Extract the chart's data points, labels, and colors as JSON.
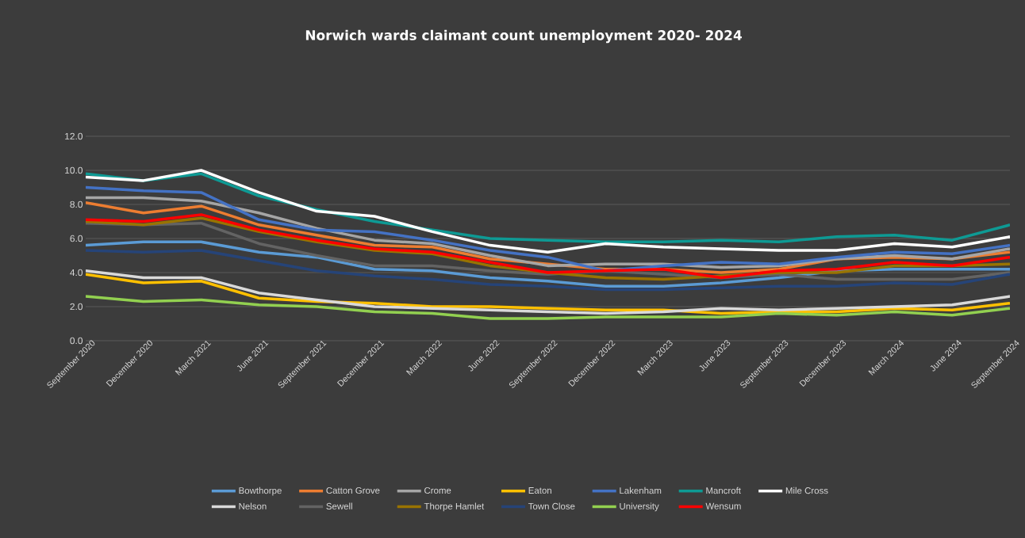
{
  "chart_data": {
    "type": "line",
    "title": "Norwich wards claimant count unemployment 2020- 2024",
    "categories": [
      "September 2020",
      "December 2020",
      "March 2021",
      "June 2021",
      "September 2021",
      "December 2021",
      "March 2022",
      "June 2022",
      "September 2022",
      "December 2022",
      "March 2023",
      "June 2023",
      "September 2023",
      "December 2023",
      "March 2024",
      "June 2024",
      "September 2024"
    ],
    "ylim": [
      0,
      12
    ],
    "yticks": [
      {
        "value": 0,
        "label": "0.0"
      },
      {
        "value": 2,
        "label": "2.0"
      },
      {
        "value": 4,
        "label": "4.0"
      },
      {
        "value": 6,
        "label": "6.0"
      },
      {
        "value": 8,
        "label": "8.0"
      },
      {
        "value": 10,
        "label": "10.0"
      },
      {
        "value": 12,
        "label": "12.0"
      }
    ],
    "grid": "y",
    "legend": "bottom",
    "marker": "none",
    "line_style": "solid",
    "series": [
      {
        "name": "Bowthorpe",
        "color": "#5b9bd5",
        "values": [
          5.6,
          5.8,
          5.8,
          5.2,
          4.9,
          4.2,
          4.1,
          3.7,
          3.5,
          3.2,
          3.2,
          3.4,
          3.7,
          4.1,
          4.2,
          4.2,
          4.2
        ]
      },
      {
        "name": "Catton Grove",
        "color": "#ed7d31",
        "values": [
          8.1,
          7.5,
          7.9,
          6.8,
          6.2,
          5.6,
          5.5,
          4.8,
          4.5,
          4.2,
          4.2,
          4.0,
          4.2,
          4.8,
          4.9,
          4.8,
          5.2
        ]
      },
      {
        "name": "Crome",
        "color": "#a5a5a5",
        "values": [
          8.4,
          8.4,
          8.2,
          7.5,
          6.6,
          5.9,
          5.7,
          5.0,
          4.4,
          4.5,
          4.5,
          4.3,
          4.4,
          4.8,
          5.0,
          4.8,
          5.4
        ]
      },
      {
        "name": "Eaton",
        "color": "#ffc000",
        "values": [
          3.9,
          3.4,
          3.5,
          2.5,
          2.3,
          2.2,
          2.0,
          2.0,
          1.9,
          1.8,
          1.8,
          1.6,
          1.7,
          1.7,
          1.9,
          1.8,
          2.2
        ]
      },
      {
        "name": "Lakenham",
        "color": "#4472c4",
        "values": [
          9.0,
          8.8,
          8.7,
          7.1,
          6.5,
          6.4,
          5.9,
          5.3,
          4.9,
          4.1,
          4.4,
          4.6,
          4.5,
          4.9,
          5.2,
          5.1,
          5.6
        ]
      },
      {
        "name": "Mancroft",
        "color": "#0e9a94",
        "values": [
          9.8,
          9.4,
          9.8,
          8.5,
          7.7,
          7.0,
          6.5,
          6.0,
          5.9,
          5.8,
          5.8,
          5.9,
          5.8,
          6.1,
          6.2,
          5.9,
          6.8
        ]
      },
      {
        "name": "Mile Cross",
        "color": "#ffffff",
        "values": [
          9.6,
          9.4,
          10.0,
          8.7,
          7.6,
          7.3,
          6.4,
          5.6,
          5.2,
          5.7,
          5.5,
          5.4,
          5.3,
          5.3,
          5.7,
          5.5,
          6.1
        ]
      },
      {
        "name": "Nelson",
        "color": "#d9d9d9",
        "values": [
          4.1,
          3.7,
          3.7,
          2.8,
          2.4,
          2.0,
          1.9,
          1.8,
          1.7,
          1.6,
          1.7,
          1.9,
          1.8,
          1.9,
          2.0,
          2.1,
          2.6
        ]
      },
      {
        "name": "Sewell",
        "color": "#636363",
        "values": [
          6.9,
          6.8,
          6.9,
          5.7,
          5.0,
          4.4,
          4.4,
          4.1,
          3.9,
          4.1,
          3.9,
          3.7,
          3.9,
          3.6,
          3.6,
          3.6,
          4.0
        ]
      },
      {
        "name": "Thorpe Hamlet",
        "color": "#997300",
        "values": [
          7.0,
          6.8,
          7.2,
          6.4,
          5.8,
          5.3,
          5.1,
          4.4,
          4.0,
          3.7,
          3.6,
          3.8,
          4.0,
          4.0,
          4.4,
          4.4,
          4.5
        ]
      },
      {
        "name": "Town Close",
        "color": "#264478",
        "values": [
          5.3,
          5.2,
          5.3,
          4.7,
          4.1,
          3.8,
          3.6,
          3.3,
          3.2,
          3.0,
          3.0,
          3.1,
          3.2,
          3.2,
          3.4,
          3.3,
          3.9
        ]
      },
      {
        "name": "University",
        "color": "#92d050",
        "values": [
          2.6,
          2.3,
          2.4,
          2.1,
          2.0,
          1.7,
          1.6,
          1.3,
          1.3,
          1.4,
          1.4,
          1.4,
          1.6,
          1.5,
          1.7,
          1.5,
          1.9
        ]
      },
      {
        "name": "Wensum",
        "color": "#ff0000",
        "values": [
          7.1,
          7.0,
          7.4,
          6.5,
          5.9,
          5.4,
          5.2,
          4.6,
          4.0,
          4.1,
          4.2,
          3.7,
          4.1,
          4.2,
          4.6,
          4.4,
          4.9
        ]
      }
    ]
  }
}
